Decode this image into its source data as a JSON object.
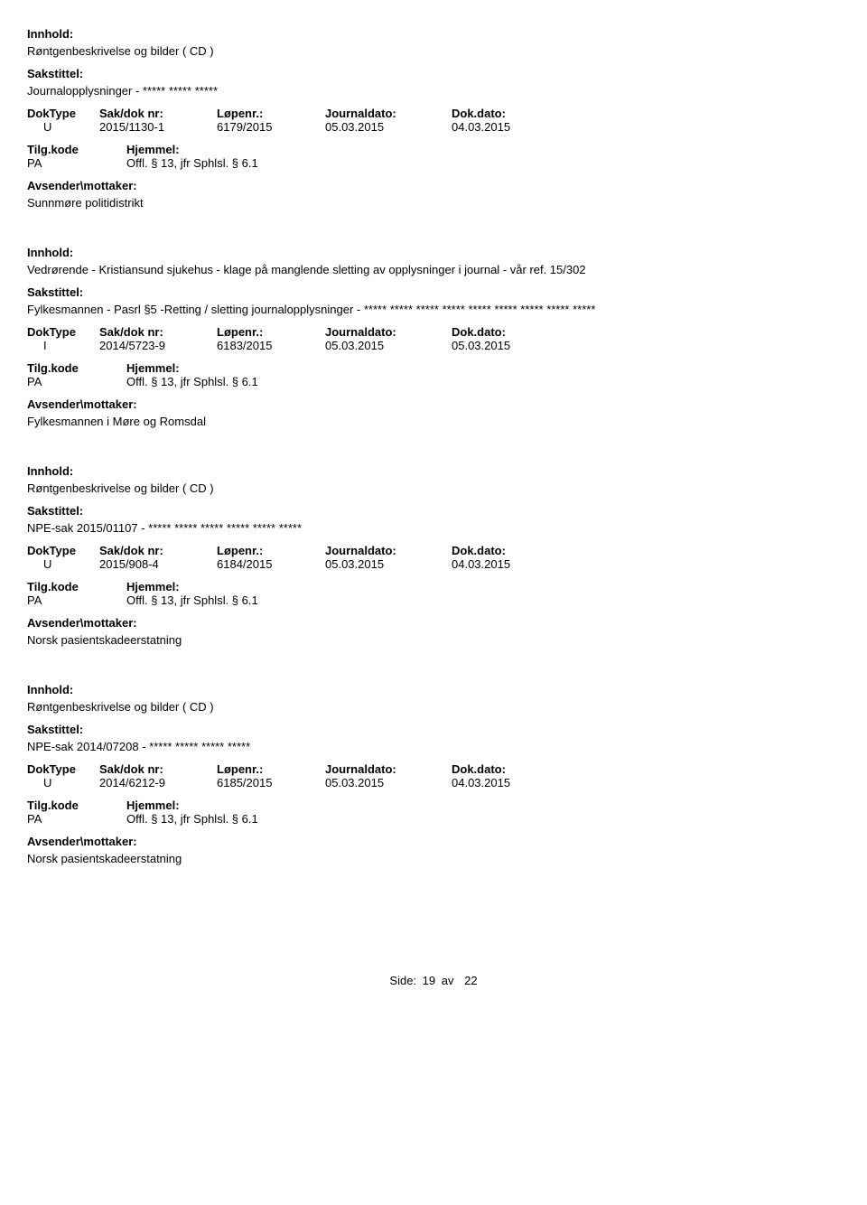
{
  "labels": {
    "innhold": "Innhold:",
    "sakstittel": "Sakstittel:",
    "doktype": "DokType",
    "sakdoknr": "Sak/dok nr:",
    "lopenr": "Løpenr.:",
    "journaldato": "Journaldato:",
    "dokdato": "Dok.dato:",
    "tilgkode": "Tilg.kode",
    "hjemmel": "Hjemmel:",
    "avsender": "Avsender\\mottaker:"
  },
  "footer": {
    "side_label": "Side:",
    "page_current": "19",
    "page_sep": "av",
    "page_total": "22"
  },
  "records": [
    {
      "innhold": "Røntgenbeskrivelse og bilder ( CD )",
      "sakstittel": "Journalopplysninger - ***** ***** *****",
      "doktype": "U",
      "sakdoknr": "2015/1130-1",
      "lopenr": "6179/2015",
      "journaldato": "05.03.2015",
      "dokdato": "04.03.2015",
      "tilgkode": "PA",
      "hjemmel": "Offl. § 13, jfr Sphlsl. § 6.1",
      "avsender": "Sunnmøre politidistrikt"
    },
    {
      "innhold": "Vedrørende - Kristiansund sjukehus - klage på manglende sletting av opplysninger i journal - vår ref. 15/302",
      "sakstittel": "Fylkesmannen - Pasrl §5 -Retting / sletting journalopplysninger - ***** ***** ***** ***** ***** ***** ***** ***** *****",
      "doktype": "I",
      "sakdoknr": "2014/5723-9",
      "lopenr": "6183/2015",
      "journaldato": "05.03.2015",
      "dokdato": "05.03.2015",
      "tilgkode": "PA",
      "hjemmel": "Offl. § 13, jfr Sphlsl. § 6.1",
      "avsender": "Fylkesmannen i Møre og Romsdal"
    },
    {
      "innhold": "Røntgenbeskrivelse og bilder ( CD )",
      "sakstittel": "NPE-sak 2015/01107 - ***** ***** ***** ***** ***** *****",
      "doktype": "U",
      "sakdoknr": "2015/908-4",
      "lopenr": "6184/2015",
      "journaldato": "05.03.2015",
      "dokdato": "04.03.2015",
      "tilgkode": "PA",
      "hjemmel": "Offl. § 13, jfr Sphlsl. § 6.1",
      "avsender": "Norsk pasientskadeerstatning"
    },
    {
      "innhold": "Røntgenbeskrivelse og bilder ( CD )",
      "sakstittel": "NPE-sak 2014/07208 - ***** ***** ***** *****",
      "doktype": "U",
      "sakdoknr": "2014/6212-9",
      "lopenr": "6185/2015",
      "journaldato": "05.03.2015",
      "dokdato": "04.03.2015",
      "tilgkode": "PA",
      "hjemmel": "Offl. § 13, jfr Sphlsl. § 6.1",
      "avsender": "Norsk pasientskadeerstatning"
    }
  ]
}
